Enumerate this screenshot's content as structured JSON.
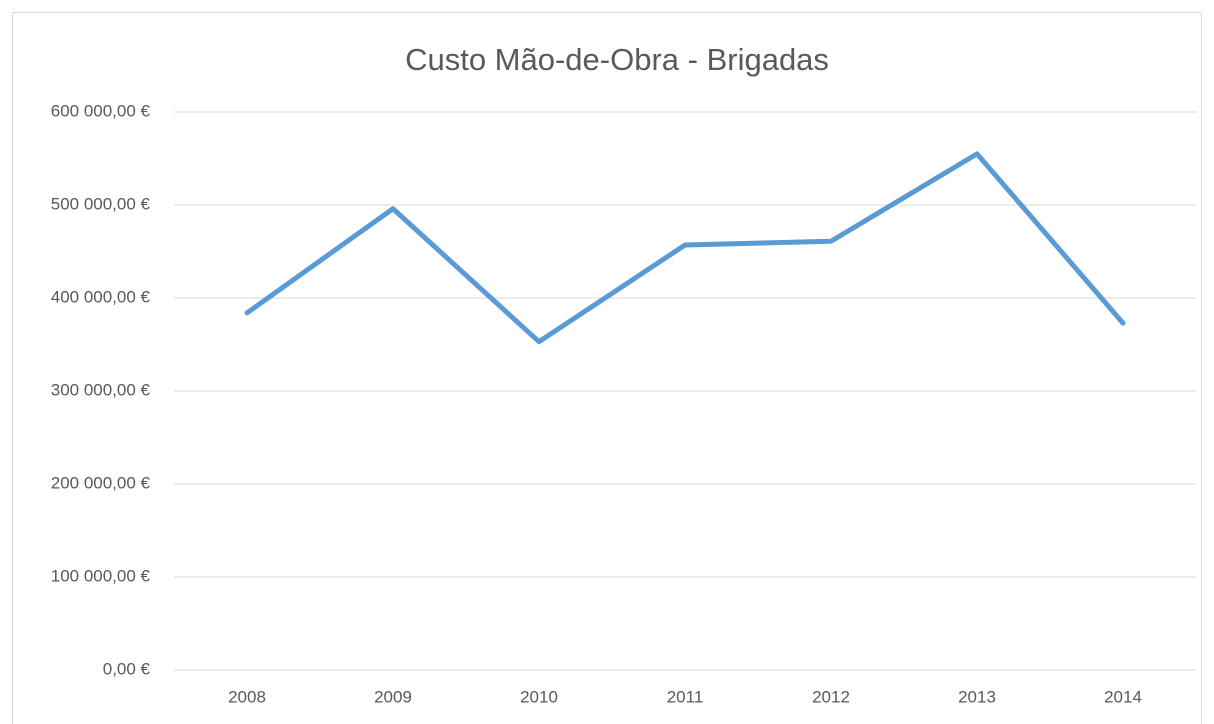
{
  "chart_data": {
    "type": "line",
    "title": "Custo Mão-de-Obra - Brigadas",
    "categories": [
      "2008",
      "2009",
      "2010",
      "2011",
      "2012",
      "2013",
      "2014"
    ],
    "values": [
      384000,
      496000,
      353000,
      457000,
      461000,
      555000,
      373000
    ],
    "color": "#5b9bd5",
    "ylim": [
      0,
      600000
    ],
    "yticks": [
      {
        "value": 0,
        "label": "0,00 €"
      },
      {
        "value": 100000,
        "label": "100 000,00 €"
      },
      {
        "value": 200000,
        "label": "200 000,00 €"
      },
      {
        "value": 300000,
        "label": "300 000,00 €"
      },
      {
        "value": 400000,
        "label": "400 000,00 €"
      },
      {
        "value": 500000,
        "label": "500 000,00 €"
      },
      {
        "value": 600000,
        "label": "600 000,00 €"
      }
    ],
    "grid": true
  }
}
